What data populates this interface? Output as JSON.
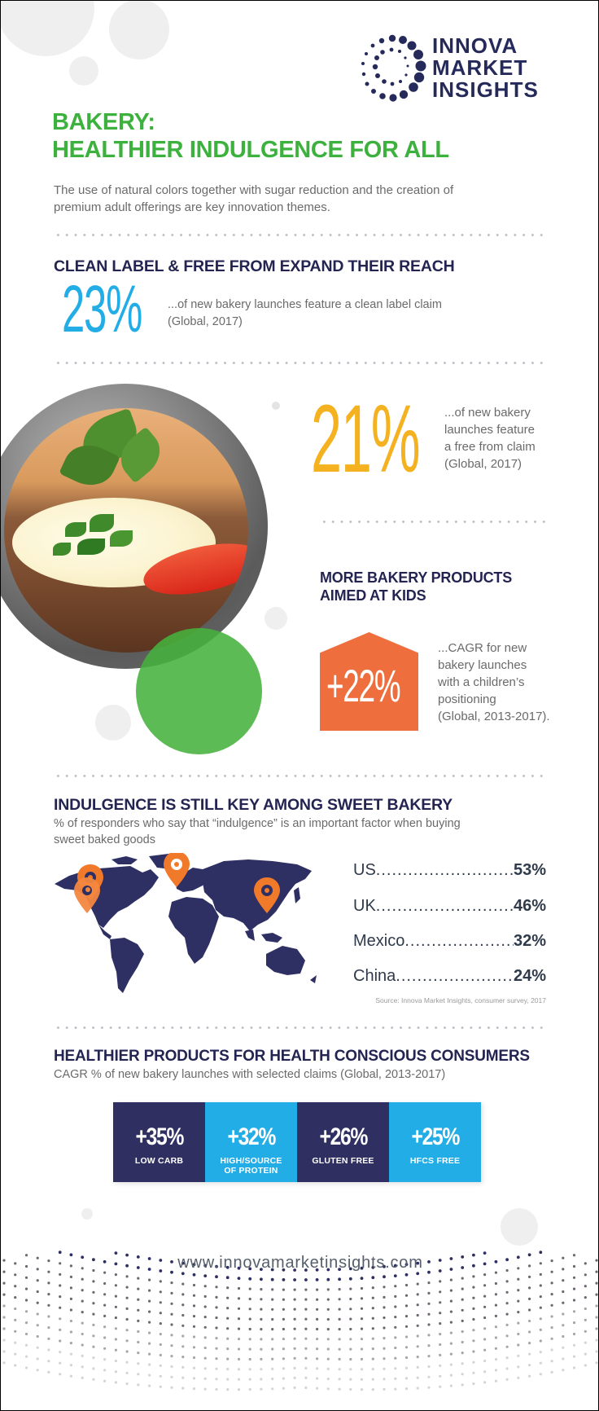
{
  "brand": {
    "logo_lines": [
      "INNOVA",
      "MARKET",
      "INSIGHTS"
    ],
    "logo_icon": "dotted-ring-logo-icon",
    "colors": {
      "navy": "#262a5a",
      "green": "#3db13d",
      "blue": "#22ade6",
      "yellow": "#f4b120",
      "orange": "#ef6e3e"
    }
  },
  "header": {
    "title_line1": "BAKERY:",
    "title_line2": "HEALTHIER INDULGENCE FOR ALL",
    "intro_line1": "The use of natural colors together with sugar reduction and the creation of",
    "intro_line2": "premium adult offerings are key innovation themes."
  },
  "clean_label": {
    "heading": "CLEAN LABEL & FREE FROM EXPAND THEIR REACH",
    "stat1": {
      "value": "23%",
      "text_line1": "...of new bakery launches feature a clean label claim",
      "text_line2": "(Global, 2017)"
    },
    "stat2": {
      "value": "21%",
      "lines": [
        "...of new bakery",
        "launches feature",
        "a free from claim",
        "(Global, 2017)"
      ]
    }
  },
  "kids": {
    "heading_line1": "MORE BAKERY PRODUCTS",
    "heading_line2": "AIMED AT KIDS",
    "value": "+22%",
    "lines": [
      "...CAGR for new",
      "bakery launches",
      "with a children’s",
      "positioning",
      "(Global, 2013-2017)."
    ]
  },
  "indulgence": {
    "heading": "INDULGENCE IS STILL KEY AMONG SWEET BAKERY",
    "sub_line1": "% of responders who say that “indulgence” is an important factor when buying",
    "sub_line2": "sweet baked goods",
    "rows": [
      {
        "country": "US",
        "value": "53%"
      },
      {
        "country": "UK",
        "value": "46%"
      },
      {
        "country": "Mexico",
        "value": "32%"
      },
      {
        "country": "China",
        "value": "24%"
      }
    ],
    "source": "Source: Innova Market Insights, consumer survey, 2017",
    "map_icon": "world-map-icon",
    "pin_icon": "location-pin-icon"
  },
  "healthier": {
    "heading": "HEALTHIER PRODUCTS FOR HEALTH CONSCIOUS CONSUMERS",
    "sub": "CAGR % of new bakery launches with selected claims (Global, 2013-2017)",
    "tiles": [
      {
        "value": "+35%",
        "label_line1": "LOW CARB",
        "label_line2": "",
        "color": "#2f3061"
      },
      {
        "value": "+32%",
        "label_line1": "HIGH/SOURCE",
        "label_line2": "OF PROTEIN",
        "color": "#22ade6"
      },
      {
        "value": "+26%",
        "label_line1": "GLUTEN FREE",
        "label_line2": "",
        "color": "#2f3061"
      },
      {
        "value": "+25%",
        "label_line1": "HFCS FREE",
        "label_line2": "",
        "color": "#22ade6"
      }
    ]
  },
  "footer": {
    "url": "www.innovamarketinsights.com"
  }
}
